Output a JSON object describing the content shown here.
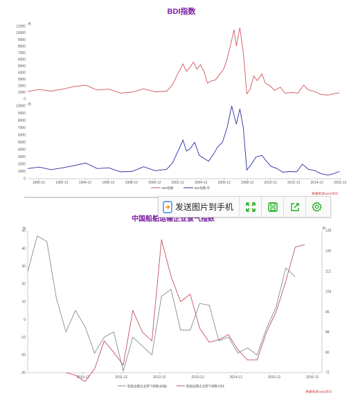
{
  "toolbar": {
    "send_label": "发送图片到手机",
    "icons": [
      "phone-send-icon",
      "expand-icon",
      "save-icon",
      "share-icon",
      "settings-icon"
    ],
    "accent": "#1aad19"
  },
  "chart_data": [
    {
      "type": "line",
      "title": "BDI指数",
      "ylim": [
        0,
        11000
      ],
      "yticks": [
        "0",
        "1000",
        "2000",
        "3000",
        "4000",
        "5000",
        "6000",
        "7000",
        "8000",
        "9000",
        "10000",
        "11000"
      ],
      "yunit": "点",
      "series": [
        {
          "name": "BDI指数",
          "color": "#d0555a",
          "points": [
            [
              1990,
              1150
            ],
            [
              1991,
              1450
            ],
            [
              1992,
              1200
            ],
            [
              1993,
              1500
            ],
            [
              1994,
              1900
            ],
            [
              1995,
              2100
            ],
            [
              1996,
              1350
            ],
            [
              1997,
              1500
            ],
            [
              1998,
              900
            ],
            [
              1999,
              1050
            ],
            [
              2000,
              1550
            ],
            [
              2001,
              1100
            ],
            [
              2002,
              1200
            ],
            [
              2002.5,
              2200
            ],
            [
              2003,
              4000
            ],
            [
              2003.4,
              5300
            ],
            [
              2003.7,
              4200
            ],
            [
              2004,
              4800
            ],
            [
              2004.3,
              5600
            ],
            [
              2004.6,
              4500
            ],
            [
              2004.9,
              5200
            ],
            [
              2005.2,
              4200
            ],
            [
              2005.5,
              2400
            ],
            [
              2005.8,
              2700
            ],
            [
              2006.2,
              2900
            ],
            [
              2006.6,
              3800
            ],
            [
              2006.9,
              4500
            ],
            [
              2007.2,
              6000
            ],
            [
              2007.5,
              8200
            ],
            [
              2007.8,
              10500
            ],
            [
              2008.0,
              8000
            ],
            [
              2008.3,
              10800
            ],
            [
              2008.6,
              7000
            ],
            [
              2008.9,
              800
            ],
            [
              2009.2,
              1500
            ],
            [
              2009.5,
              3500
            ],
            [
              2009.8,
              2800
            ],
            [
              2010.2,
              3800
            ],
            [
              2010.5,
              2400
            ],
            [
              2010.9,
              2000
            ],
            [
              2011.3,
              1300
            ],
            [
              2011.8,
              1800
            ],
            [
              2012.2,
              900
            ],
            [
              2012.8,
              1000
            ],
            [
              2013.3,
              900
            ],
            [
              2013.8,
              2100
            ],
            [
              2014.2,
              1400
            ],
            [
              2014.8,
              1100
            ],
            [
              2015.3,
              700
            ],
            [
              2015.9,
              600
            ],
            [
              2016.4,
              800
            ],
            [
              2016.9,
              950
            ]
          ]
        }
      ]
    },
    {
      "type": "line",
      "ylim": [
        0,
        10000
      ],
      "yticks": [
        "0",
        "1000",
        "2000",
        "3000",
        "4000",
        "5000",
        "6000",
        "7000",
        "8000",
        "9000",
        "10000"
      ],
      "yunit": "点",
      "xlim": [
        1990,
        2017
      ],
      "xticks": [
        "1990-12",
        "1992-12",
        "1994-12",
        "1996-12",
        "1998-12",
        "2000-12",
        "2002-12",
        "2004-12",
        "2006-12",
        "2008-12",
        "2010-12",
        "2012-12",
        "2014-12",
        "2016-12"
      ],
      "legend": [
        "BDI指数",
        "BDI指数:年"
      ],
      "source": "数据来源:wind资讯",
      "series": [
        {
          "name": "BDI指数:年",
          "color": "#2a2aa0",
          "points": [
            [
              1990,
              1400
            ],
            [
              1991,
              1600
            ],
            [
              1992,
              1250
            ],
            [
              1993,
              1500
            ],
            [
              1994,
              1800
            ],
            [
              1995,
              2150
            ],
            [
              1996,
              1400
            ],
            [
              1997,
              1500
            ],
            [
              1998,
              950
            ],
            [
              1999,
              1000
            ],
            [
              2000,
              1650
            ],
            [
              2001,
              1100
            ],
            [
              2002,
              1300
            ],
            [
              2002.5,
              2200
            ],
            [
              2003,
              3900
            ],
            [
              2003.4,
              5300
            ],
            [
              2003.7,
              3800
            ],
            [
              2004,
              4100
            ],
            [
              2004.4,
              5000
            ],
            [
              2004.8,
              3200
            ],
            [
              2005.2,
              2800
            ],
            [
              2005.6,
              2400
            ],
            [
              2006,
              3300
            ],
            [
              2006.4,
              4400
            ],
            [
              2006.8,
              5000
            ],
            [
              2007.2,
              7000
            ],
            [
              2007.6,
              10000
            ],
            [
              2008.0,
              7500
            ],
            [
              2008.3,
              9600
            ],
            [
              2008.6,
              7000
            ],
            [
              2008.9,
              1200
            ],
            [
              2009.3,
              2000
            ],
            [
              2009.7,
              3000
            ],
            [
              2010.2,
              3200
            ],
            [
              2010.6,
              2400
            ],
            [
              2011,
              1700
            ],
            [
              2011.5,
              1400
            ],
            [
              2012,
              900
            ],
            [
              2012.6,
              1000
            ],
            [
              2013.2,
              950
            ],
            [
              2013.7,
              2000
            ],
            [
              2014.2,
              1300
            ],
            [
              2014.8,
              1100
            ],
            [
              2015.3,
              700
            ],
            [
              2015.9,
              500
            ],
            [
              2016.4,
              700
            ],
            [
              2016.9,
              1000
            ]
          ]
        }
      ]
    },
    {
      "type": "line",
      "title": "中国船舶运输企业景气指数",
      "ylim_left": [
        -30,
        50
      ],
      "yticks_left": [
        "-30",
        "-20",
        "-10",
        "0",
        "10",
        "20",
        "30",
        "40",
        "50"
      ],
      "yunit_left": "%",
      "ylim_right": [
        72,
        128
      ],
      "yticks_right": [
        "72",
        "80",
        "88",
        "96",
        "104",
        "112",
        "120",
        "128"
      ],
      "yunit_right": "点",
      "xlim": [
        2009.5,
        2017.2
      ],
      "xticks": [
        "2010-12",
        "2011-12",
        "2012-12",
        "2013-12",
        "2014-12",
        "2015-12",
        "2016-12"
      ],
      "legend": [
        "船舶运输企业景气指数(右轴)",
        "船舶运输企业景气指数:同比"
      ],
      "source": "数据来源:wind资讯",
      "series": [
        {
          "name": "船舶运输企业景气指数(右轴)",
          "color": "#c05060",
          "axis": "right",
          "points": [
            [
              2010.5,
              72.0
            ],
            [
              2010.75,
              71.0
            ],
            [
              2011.0,
              68.5
            ],
            [
              2011.25,
              73.5
            ],
            [
              2011.5,
              84.5
            ],
            [
              2011.75,
              80.0
            ],
            [
              2012.0,
              75.0
            ],
            [
              2012.25,
              96.5
            ],
            [
              2012.5,
              88.0
            ],
            [
              2012.75,
              84.5
            ],
            [
              2013.0,
              124.5
            ],
            [
              2013.25,
              110.0
            ],
            [
              2013.5,
              100.0
            ],
            [
              2013.75,
              103.0
            ],
            [
              2014.0,
              89.5
            ],
            [
              2014.25,
              84.0
            ],
            [
              2014.5,
              85.0
            ],
            [
              2014.75,
              87.0
            ],
            [
              2015.0,
              81.0
            ],
            [
              2015.25,
              77.0
            ],
            [
              2015.5,
              77.0
            ],
            [
              2015.75,
              88.0
            ],
            [
              2016.0,
              96.0
            ],
            [
              2016.25,
              108.0
            ],
            [
              2016.5,
              121.5
            ],
            [
              2016.75,
              122.5
            ]
          ]
        },
        {
          "name": "船舶运输企业景气指数:同比",
          "color": "#7f8f8f",
          "axis": "left",
          "points": [
            [
              2009.5,
              27
            ],
            [
              2009.75,
              47
            ],
            [
              2010.0,
              44
            ],
            [
              2010.25,
              12
            ],
            [
              2010.5,
              -7
            ],
            [
              2010.75,
              5
            ],
            [
              2011.0,
              -4
            ],
            [
              2011.25,
              -19
            ],
            [
              2011.5,
              -10
            ],
            [
              2011.75,
              -7
            ],
            [
              2012.0,
              -29
            ],
            [
              2012.25,
              -10
            ],
            [
              2012.5,
              -15
            ],
            [
              2012.75,
              -20
            ],
            [
              2013.0,
              13
            ],
            [
              2013.25,
              17
            ],
            [
              2013.5,
              -6
            ],
            [
              2013.75,
              -6
            ],
            [
              2014.0,
              9
            ],
            [
              2014.25,
              8
            ],
            [
              2014.5,
              -12
            ],
            [
              2014.75,
              -10
            ],
            [
              2015.0,
              -19
            ],
            [
              2015.25,
              -16
            ],
            [
              2015.5,
              -20
            ],
            [
              2015.75,
              -5
            ],
            [
              2016.0,
              7
            ],
            [
              2016.25,
              29
            ],
            [
              2016.5,
              24
            ]
          ]
        }
      ]
    }
  ]
}
